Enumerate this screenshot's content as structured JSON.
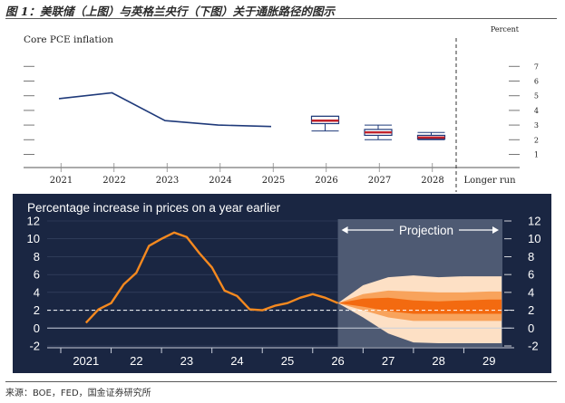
{
  "figure_title": "图 1：美联储（上图）与英格兰央行（下图）关于通胀路径的图示",
  "source": "来源：BOE，FED，国金证券研究所",
  "chart_data": [
    {
      "type": "line",
      "title": "Core PCE inflation",
      "ylabel": "Percent",
      "ylim": [
        0,
        8
      ],
      "yticks": [
        1,
        2,
        3,
        4,
        5,
        6,
        7
      ],
      "categories": [
        "2021",
        "2022",
        "2023",
        "2024",
        "2025",
        "2026",
        "2027",
        "2028",
        "Longer run"
      ],
      "series": [
        {
          "values": [
            4.8,
            5.2,
            3.3,
            3.0,
            2.9,
            null,
            null,
            null,
            null
          ]
        }
      ],
      "projection_boxes": [
        {
          "category": "2026",
          "low": 2.6,
          "q1": 3.1,
          "median": 3.3,
          "q3": 3.6,
          "high": 3.6
        },
        {
          "category": "2027",
          "low": 2.0,
          "q1": 2.3,
          "median": 2.5,
          "q3": 2.7,
          "high": 3.0
        },
        {
          "category": "2028",
          "low": 2.0,
          "q1": 2.05,
          "median": 2.15,
          "q3": 2.3,
          "high": 2.5
        }
      ],
      "grid": false
    },
    {
      "type": "area",
      "title": "Percentage increase in prices on a year earlier",
      "annotation": "Projection",
      "xlim": [
        2020.5,
        2029.5
      ],
      "ylim": [
        -2,
        12
      ],
      "yticks": [
        -2,
        0,
        2,
        4,
        6,
        8,
        10,
        12
      ],
      "xtick_labels": [
        "2021",
        "22",
        "23",
        "24",
        "25",
        "26",
        "27",
        "28",
        "29"
      ],
      "target_line": 2,
      "projection_start": 2026.0,
      "series": [
        {
          "x": [
            2021.0,
            2021.25,
            2021.5,
            2021.75,
            2022.0,
            2022.25,
            2022.5,
            2022.75,
            2023.0,
            2023.25,
            2023.5,
            2023.75,
            2024.0,
            2024.25,
            2024.5,
            2024.75,
            2025.0,
            2025.25,
            2025.5,
            2025.75,
            2026.0
          ],
          "y": [
            0.6,
            2.1,
            2.8,
            4.9,
            6.2,
            9.2,
            10.0,
            10.7,
            10.2,
            8.4,
            6.8,
            4.2,
            3.6,
            2.1,
            2.0,
            2.5,
            2.8,
            3.4,
            3.8,
            3.4,
            2.8
          ]
        }
      ],
      "fan": {
        "x": [
          2026.0,
          2026.5,
          2027.0,
          2027.5,
          2028.0,
          2028.5,
          2029.0,
          2029.25
        ],
        "outer_low": [
          2.8,
          1.2,
          -0.6,
          -1.6,
          -1.7,
          -1.7,
          -1.7,
          -1.7
        ],
        "mid_low": [
          2.8,
          2.0,
          1.2,
          0.8,
          0.8,
          0.8,
          0.8,
          0.8
        ],
        "inner_low": [
          2.8,
          2.4,
          1.9,
          1.6,
          1.6,
          1.6,
          1.6,
          1.6
        ],
        "inner_high": [
          2.8,
          3.3,
          3.4,
          3.1,
          3.0,
          3.1,
          3.2,
          3.2
        ],
        "mid_high": [
          2.8,
          3.8,
          4.2,
          4.1,
          4.0,
          4.0,
          4.1,
          4.1
        ],
        "outer_high": [
          2.8,
          4.8,
          5.7,
          5.9,
          5.7,
          5.8,
          5.8,
          5.8
        ]
      },
      "colors": {
        "background": "#1a2642",
        "projection_band": "#4e5a73",
        "line": "#f5891f",
        "fan_inner": "#f36a10",
        "fan_mid": "#f8a35c",
        "fan_outer": "#fde0c5"
      }
    }
  ]
}
